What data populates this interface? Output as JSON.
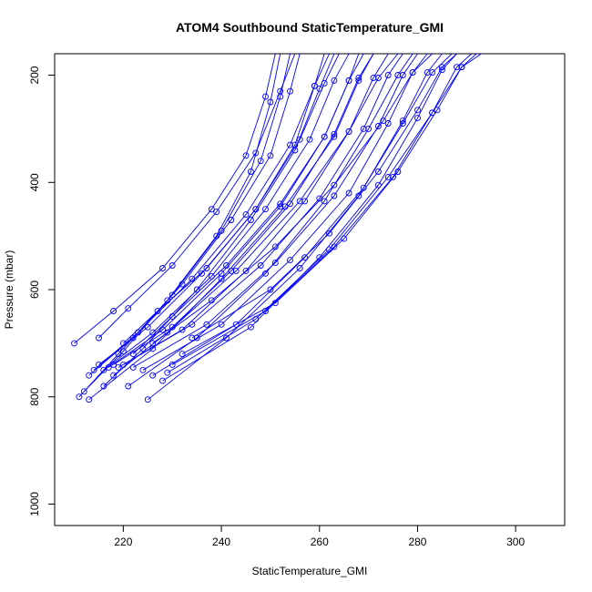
{
  "chart_data": {
    "type": "line",
    "title": "ATOM4 Southbound StaticTemperature_GMI",
    "xlabel": "StaticTemperature_GMI",
    "ylabel": "Pressure (mbar)",
    "xlim": [
      206,
      310
    ],
    "ylim": [
      1040,
      160
    ],
    "y_reversed": true,
    "xticks": [
      220,
      240,
      260,
      280,
      300
    ],
    "yticks": [
      200,
      400,
      600,
      800,
      1000
    ],
    "grid": false,
    "legend": "none",
    "color": "#0000ff",
    "marker": "open-circle",
    "series": [
      {
        "x": [
          211,
          219,
          229,
          239,
          246,
          250,
          252
        ],
        "y": [
          800,
          720,
          620,
          500,
          380,
          250,
          160
        ]
      },
      {
        "x": [
          212,
          220,
          230,
          240,
          248,
          252,
          254
        ],
        "y": [
          790,
          715,
          610,
          490,
          360,
          240,
          160
        ]
      },
      {
        "x": [
          213,
          222,
          232,
          242,
          250,
          254,
          256
        ],
        "y": [
          760,
          690,
          590,
          470,
          350,
          230,
          160
        ]
      },
      {
        "x": [
          210,
          218,
          228,
          238,
          245,
          249,
          251
        ],
        "y": [
          700,
          640,
          560,
          450,
          350,
          240,
          160
        ]
      },
      {
        "x": [
          214,
          223,
          234,
          245,
          254,
          259,
          262
        ],
        "y": [
          750,
          680,
          580,
          460,
          330,
          220,
          160
        ]
      },
      {
        "x": [
          215,
          225,
          236,
          247,
          256,
          261,
          264
        ],
        "y": [
          740,
          670,
          570,
          450,
          320,
          215,
          160
        ]
      },
      {
        "x": [
          216,
          226,
          238,
          249,
          258,
          263,
          266
        ],
        "y": [
          750,
          680,
          575,
          450,
          320,
          210,
          160
        ]
      },
      {
        "x": [
          217,
          228,
          240,
          252,
          261,
          266,
          269
        ],
        "y": [
          745,
          675,
          570,
          445,
          315,
          210,
          160
        ]
      },
      {
        "x": [
          218,
          230,
          242,
          254,
          263,
          268,
          271
        ],
        "y": [
          740,
          670,
          565,
          440,
          310,
          205,
          160
        ]
      },
      {
        "x": [
          219,
          232,
          245,
          257,
          266,
          271,
          274
        ],
        "y": [
          745,
          675,
          565,
          435,
          305,
          205,
          160
        ]
      },
      {
        "x": [
          220,
          234,
          248,
          260,
          269,
          274,
          277
        ],
        "y": [
          740,
          665,
          555,
          430,
          300,
          200,
          160
        ]
      },
      {
        "x": [
          222,
          237,
          251,
          263,
          272,
          277,
          280
        ],
        "y": [
          745,
          665,
          550,
          425,
          295,
          200,
          160
        ]
      },
      {
        "x": [
          224,
          240,
          254,
          266,
          274,
          279,
          282
        ],
        "y": [
          750,
          665,
          545,
          420,
          290,
          195,
          160
        ]
      },
      {
        "x": [
          226,
          243,
          257,
          269,
          277,
          282,
          285
        ],
        "y": [
          760,
          665,
          540,
          410,
          285,
          195,
          160
        ]
      },
      {
        "x": [
          225,
          241,
          256,
          268,
          277,
          283,
          287
        ],
        "y": [
          805,
          690,
          560,
          425,
          290,
          195,
          160
        ]
      },
      {
        "x": [
          228,
          246,
          260,
          272,
          280,
          285,
          288
        ],
        "y": [
          770,
          670,
          540,
          405,
          280,
          190,
          160
        ]
      },
      {
        "x": [
          230,
          249,
          263,
          275,
          283,
          288,
          291
        ],
        "y": [
          740,
          640,
          520,
          390,
          270,
          185,
          160
        ]
      },
      {
        "x": [
          232,
          251,
          265,
          276,
          284,
          289,
          292
        ],
        "y": [
          720,
          625,
          505,
          380,
          265,
          185,
          160
        ]
      },
      {
        "x": [
          229,
          247,
          262,
          274,
          283,
          289,
          293
        ],
        "y": [
          755,
          655,
          525,
          390,
          270,
          185,
          160
        ]
      },
      {
        "x": [
          216,
          224,
          235,
          246,
          255,
          260,
          263
        ],
        "y": [
          780,
          710,
          600,
          470,
          340,
          225,
          160
        ]
      },
      {
        "x": [
          220,
          227,
          237,
          247,
          255,
          259,
          261
        ],
        "y": [
          700,
          640,
          560,
          450,
          330,
          220,
          160
        ]
      },
      {
        "x": [
          222,
          230,
          241,
          252,
          261,
          266,
          268
        ],
        "y": [
          720,
          650,
          555,
          440,
          315,
          210,
          160
        ]
      },
      {
        "x": [
          215,
          221,
          230,
          239,
          247,
          252,
          255
        ],
        "y": [
          690,
          635,
          555,
          455,
          345,
          230,
          160
        ]
      },
      {
        "x": [
          226,
          238,
          251,
          263,
          273,
          279,
          283
        ],
        "y": [
          700,
          620,
          520,
          405,
          285,
          195,
          160
        ]
      },
      {
        "x": [
          234,
          250,
          262,
          272,
          280,
          285,
          288
        ],
        "y": [
          690,
          600,
          495,
          380,
          265,
          185,
          160
        ]
      },
      {
        "x": [
          213,
          226,
          240,
          253,
          263,
          268,
          271
        ],
        "y": [
          805,
          710,
          580,
          445,
          315,
          210,
          160
        ]
      },
      {
        "x": [
          221,
          235,
          249,
          261,
          270,
          276,
          279
        ],
        "y": [
          780,
          690,
          570,
          435,
          300,
          200,
          160
        ]
      },
      {
        "x": [
          218,
          229,
          243,
          256,
          266,
          272,
          276
        ],
        "y": [
          760,
          680,
          565,
          435,
          305,
          205,
          160
        ]
      }
    ]
  }
}
